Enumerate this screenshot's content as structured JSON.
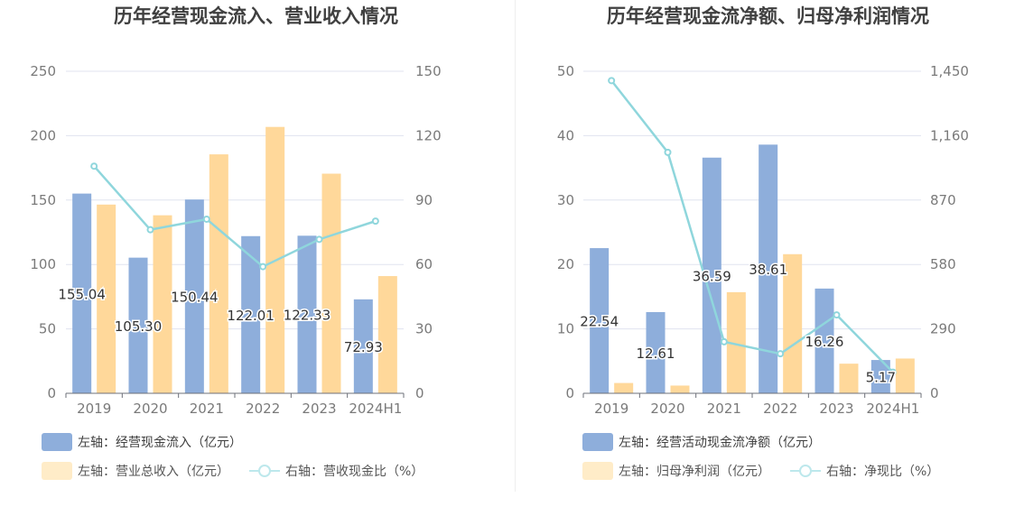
{
  "chart_data": [
    {
      "type": "bar",
      "title": "历年经营现金流入、营业收入情况",
      "categories": [
        "2019",
        "2020",
        "2021",
        "2022",
        "2023",
        "2024H1"
      ],
      "series": [
        {
          "name": "左轴：经营现金流入（亿元）",
          "axis": "left",
          "kind": "bar",
          "color": "#8eaedb",
          "values": [
            155.04,
            105.3,
            150.44,
            122.01,
            122.33,
            72.93
          ],
          "labels": [
            "155.04",
            "105.30",
            "150.44",
            "122.01",
            "122.33",
            "72.93"
          ]
        },
        {
          "name": "左轴：营业总收入（亿元）",
          "axis": "left",
          "kind": "bar",
          "color": "#ffd89a",
          "values": [
            146.5,
            138.2,
            185.5,
            206.8,
            170.5,
            91.0
          ]
        },
        {
          "name": "右轴：营收现金比（%）",
          "axis": "right",
          "kind": "line",
          "color": "#8fd6dc",
          "values": [
            105.8,
            76.2,
            81.1,
            59.0,
            71.7,
            80.2
          ]
        }
      ],
      "ylim_left": [
        0,
        250
      ],
      "yticks_left": [
        "0",
        "50",
        "100",
        "150",
        "200",
        "250"
      ],
      "ylim_right": [
        0,
        150
      ],
      "yticks_right": [
        "0",
        "30",
        "60",
        "90",
        "120",
        "150"
      ],
      "grid": true,
      "legend": "bottom"
    },
    {
      "type": "bar",
      "title": "历年经营现金流净额、归母净利润情况",
      "categories": [
        "2019",
        "2020",
        "2021",
        "2022",
        "2023",
        "2024H1"
      ],
      "series": [
        {
          "name": "左轴：经营活动现金流净额（亿元）",
          "axis": "left",
          "kind": "bar",
          "color": "#8eaedb",
          "values": [
            22.54,
            12.61,
            36.59,
            38.61,
            16.26,
            5.17
          ],
          "labels": [
            "22.54",
            "12.61",
            "36.59",
            "38.61",
            "16.26",
            "5.17"
          ]
        },
        {
          "name": "左轴：归母净利润（亿元）",
          "axis": "left",
          "kind": "bar",
          "color": "#ffd89a",
          "values": [
            1.6,
            1.2,
            15.7,
            21.6,
            4.6,
            5.4
          ]
        },
        {
          "name": "右轴：净现比（%）",
          "axis": "right",
          "kind": "line",
          "color": "#8fd6dc",
          "values": [
            1408,
            1085,
            232,
            178,
            353,
            95
          ]
        }
      ],
      "ylim_left": [
        0,
        50
      ],
      "yticks_left": [
        "0",
        "10",
        "20",
        "30",
        "40",
        "50"
      ],
      "ylim_right": [
        0,
        1450
      ],
      "yticks_right": [
        "0",
        "290",
        "580",
        "870",
        "1,160",
        "1,450"
      ],
      "grid": true,
      "legend": "bottom"
    }
  ]
}
